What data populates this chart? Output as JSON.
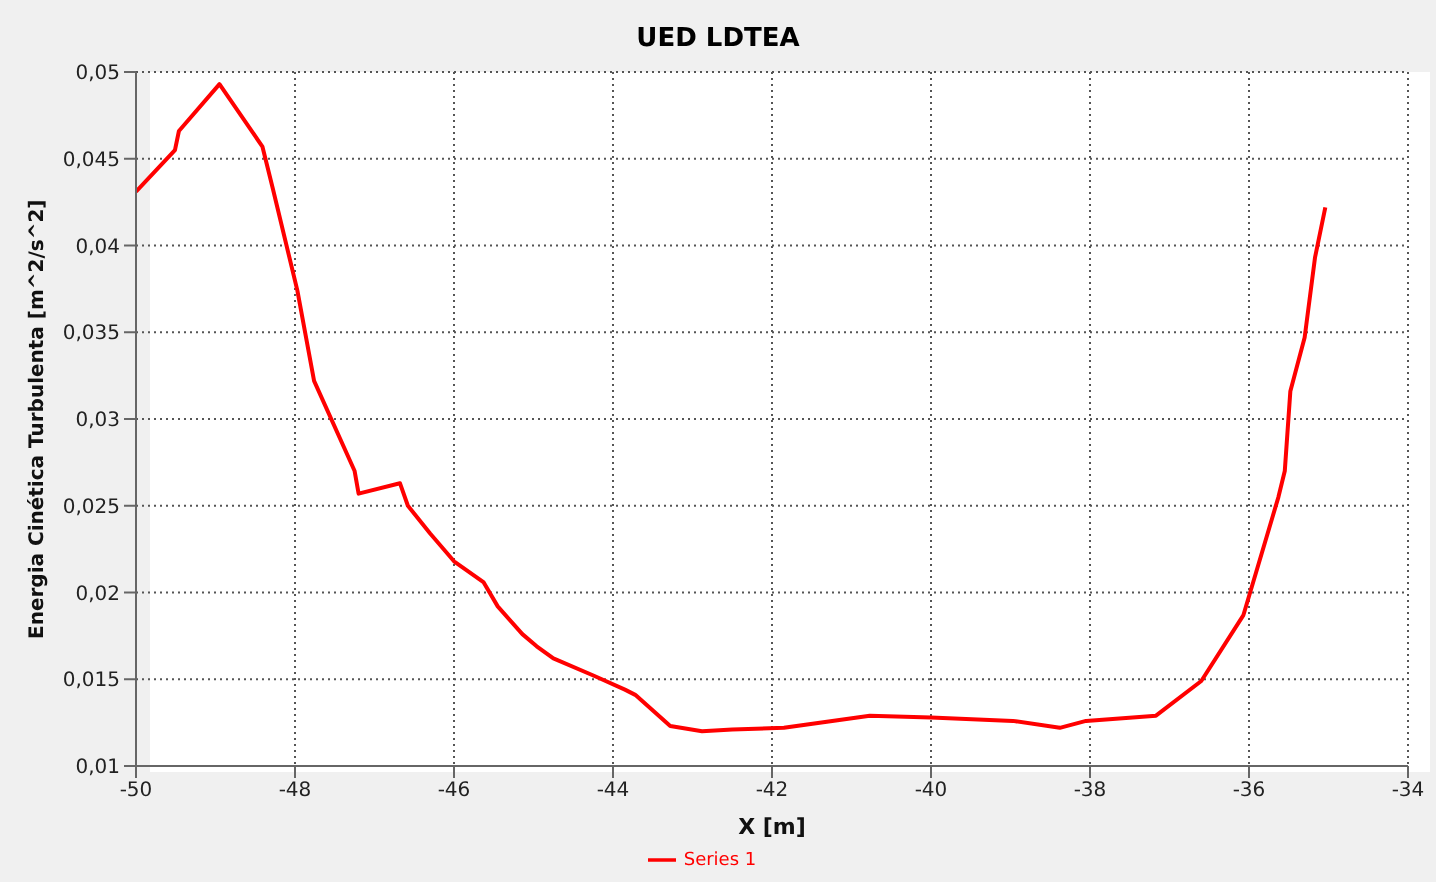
{
  "chart_data": {
    "type": "line",
    "title": "UED LDTEA",
    "xlabel": "X [m]",
    "ylabel": "Energia Cinética Turbulenta [m^2/s^2]",
    "series": [
      {
        "name": "Series 1",
        "color": "#ff0000",
        "x": [
          -50,
          -49.51,
          -49.46,
          -48.95,
          -48.41,
          -48.28,
          -47.97,
          -47.76,
          -47.25,
          -47.2,
          -46.68,
          -46.58,
          -46.3,
          -46.0,
          -45.63,
          -45.45,
          -45.14,
          -44.96,
          -44.75,
          -44.24,
          -43.85,
          -43.72,
          -43.28,
          -42.88,
          -42.5,
          -41.85,
          -40.77,
          -40.0,
          -38.97,
          -38.38,
          -38.05,
          -37.17,
          -36.6,
          -36.07,
          -35.63,
          -35.55,
          -35.48,
          -35.3,
          -35.17,
          -35.04
        ],
        "values": [
          0.0431,
          0.0455,
          0.0466,
          0.0493,
          0.0457,
          0.0433,
          0.0374,
          0.0322,
          0.027,
          0.0257,
          0.0263,
          0.025,
          0.0234,
          0.0218,
          0.0206,
          0.0192,
          0.0176,
          0.0169,
          0.0162,
          0.0152,
          0.0144,
          0.0141,
          0.0123,
          0.012,
          0.0121,
          0.0122,
          0.0129,
          0.0128,
          0.0126,
          0.0122,
          0.0126,
          0.0129,
          0.0149,
          0.0187,
          0.0255,
          0.027,
          0.0316,
          0.0347,
          0.0393,
          0.0422
        ]
      }
    ],
    "xlim": [
      -50,
      -34
    ],
    "xticks": [
      -50,
      -48,
      -46,
      -44,
      -42,
      -40,
      -38,
      -36,
      -34
    ],
    "ylim": [
      0.01,
      0.05
    ],
    "yticks": [
      {
        "value": 0.01,
        "label": "0,01"
      },
      {
        "value": 0.015,
        "label": "0,015"
      },
      {
        "value": 0.02,
        "label": "0,02"
      },
      {
        "value": 0.025,
        "label": "0,025"
      },
      {
        "value": 0.03,
        "label": "0,03"
      },
      {
        "value": 0.035,
        "label": "0,035"
      },
      {
        "value": 0.04,
        "label": "0,04"
      },
      {
        "value": 0.045,
        "label": "0,045"
      },
      {
        "value": 0.05,
        "label": "0,05"
      }
    ],
    "grid": true,
    "legend": "bottom",
    "marker": "none",
    "line_style": "solid"
  }
}
